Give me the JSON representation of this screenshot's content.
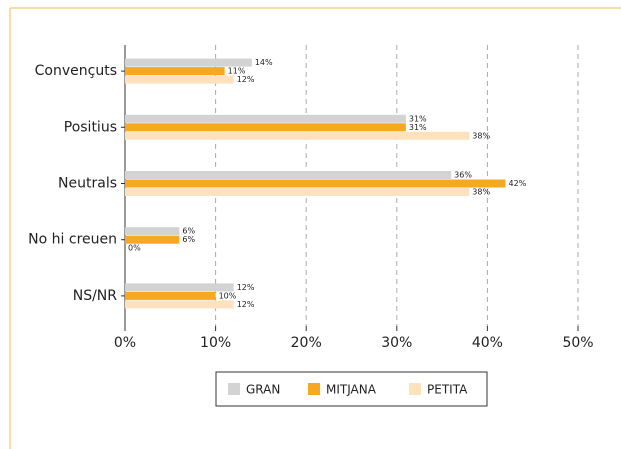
{
  "chart_data": {
    "type": "hbar",
    "categories": [
      "Convençuts",
      "Positius",
      "Neutrals",
      "No hi creuen",
      "NS/NR"
    ],
    "series": [
      {
        "name": "GRAN",
        "color": "#d3d3d3",
        "values": [
          14,
          31,
          36,
          6,
          12
        ],
        "value_labels": [
          "14%",
          "31%",
          "36%",
          "6%",
          "12%"
        ]
      },
      {
        "name": "MITJANA",
        "color": "#f7a823",
        "values": [
          11,
          31,
          42,
          6,
          10
        ],
        "value_labels": [
          "11%",
          "31%",
          "42%",
          "6%",
          "10%"
        ]
      },
      {
        "name": "PETITA",
        "color": "#fde2bd",
        "values": [
          12,
          38,
          38,
          0,
          12
        ],
        "value_labels": [
          "12%",
          "38%",
          "38%",
          "0%",
          "12%"
        ]
      }
    ],
    "xlim": [
      0,
      50
    ],
    "xticks": [
      {
        "value": 0,
        "label": "0%"
      },
      {
        "value": 10,
        "label": "10%"
      },
      {
        "value": 20,
        "label": "20%"
      },
      {
        "value": 30,
        "label": "30%"
      },
      {
        "value": 40,
        "label": "40%"
      },
      {
        "value": 50,
        "label": "50%"
      }
    ],
    "grid": true,
    "legend": "bottom"
  }
}
